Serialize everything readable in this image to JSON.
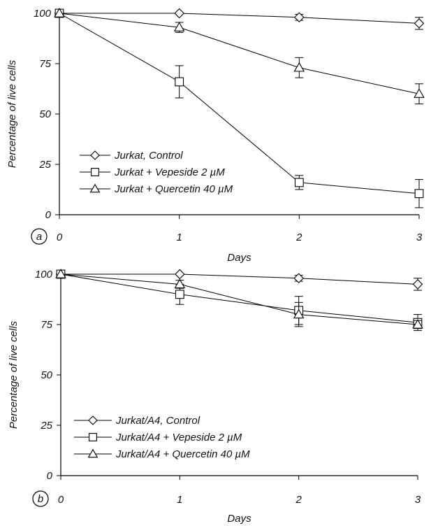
{
  "chart_data": [
    {
      "type": "line",
      "panel_label": "a",
      "xlabel": "Days",
      "ylabel": "Percentage of live cells",
      "x": [
        0,
        1,
        2,
        3
      ],
      "xlim": [
        0,
        3
      ],
      "ylim": [
        0,
        100
      ],
      "xticks": [
        "0",
        "1",
        "2",
        "3"
      ],
      "yticks": [
        "0",
        "25",
        "50",
        "75",
        "100"
      ],
      "legend_position": "bottom-left",
      "series": [
        {
          "name": "Jurkat, Control",
          "marker": "diamond",
          "values": [
            100,
            100,
            98,
            95
          ],
          "errors": [
            0,
            0,
            1.5,
            3
          ]
        },
        {
          "name": "Jurkat + Vepeside 2  µM",
          "marker": "square",
          "values": [
            100,
            66,
            16,
            10.5
          ],
          "errors": [
            0,
            8,
            3.5,
            7
          ]
        },
        {
          "name": "Jurkat + Quercetin 40  µM",
          "marker": "triangle",
          "values": [
            100,
            93,
            73,
            60
          ],
          "errors": [
            0,
            2.5,
            5,
            5
          ]
        }
      ]
    },
    {
      "type": "line",
      "panel_label": "b",
      "xlabel": "Days",
      "ylabel": "Percentage of live cells",
      "x": [
        0,
        1,
        2,
        3
      ],
      "xlim": [
        0,
        3
      ],
      "ylim": [
        0,
        100
      ],
      "xticks": [
        "0",
        "1",
        "2",
        "3"
      ],
      "yticks": [
        "0",
        "25",
        "50",
        "75",
        "100"
      ],
      "legend_position": "bottom-left",
      "series": [
        {
          "name": "Jurkat/A4, Control",
          "marker": "diamond",
          "values": [
            100,
            100,
            98,
            95
          ],
          "errors": [
            0,
            0,
            1.5,
            3
          ]
        },
        {
          "name": "Jurkat/A4 + Vepeside 2  µM",
          "marker": "square",
          "values": [
            100,
            90,
            82,
            76
          ],
          "errors": [
            0,
            5,
            7,
            4
          ]
        },
        {
          "name": "Jurkat/A4 + Quercetin 40  µM",
          "marker": "triangle",
          "values": [
            100,
            95,
            80,
            75
          ],
          "errors": [
            0,
            2,
            6,
            2
          ]
        }
      ]
    }
  ]
}
